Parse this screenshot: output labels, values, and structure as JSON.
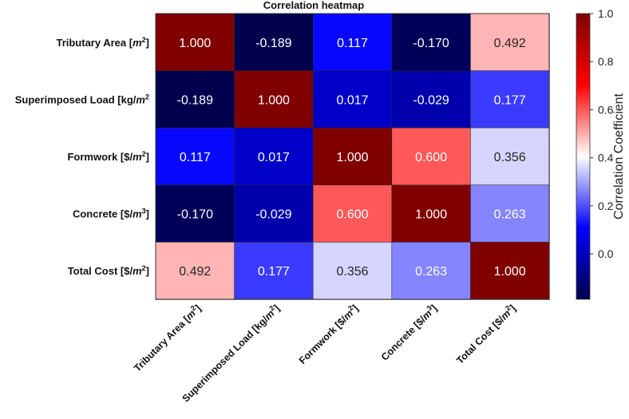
{
  "chart_data": {
    "type": "heatmap",
    "title": "Correlation heatmap",
    "row_labels": [
      {
        "text": "Tributary Area [",
        "math": "m",
        "exp": "2",
        "end": "]"
      },
      {
        "text": "Superimposed Load [kg/",
        "math": "m",
        "exp": "2",
        "end": ""
      },
      {
        "text": "Formwork [$/",
        "math": "m",
        "exp": "2",
        "end": "]"
      },
      {
        "text": "Concrete [$/",
        "math": "m",
        "exp": "3",
        "end": "]"
      },
      {
        "text": "Total Cost [$/",
        "math": "m",
        "exp": "2",
        "end": "]"
      }
    ],
    "col_labels": [
      {
        "text": "Tributary Area [",
        "math": "m",
        "exp": "2",
        "end": "]"
      },
      {
        "text": "Superimposed Load [kg/",
        "math": "m",
        "exp": "2",
        "end": "]"
      },
      {
        "text": "Formwork [$/",
        "math": "m",
        "exp": "2",
        "end": "]"
      },
      {
        "text": "Concrete [$/",
        "math": "m",
        "exp": "3",
        "end": "]"
      },
      {
        "text": "Total Cost [$/",
        "math": "m",
        "exp": "2",
        "end": "]"
      }
    ],
    "values": [
      [
        1.0,
        -0.189,
        0.117,
        -0.17,
        0.492
      ],
      [
        -0.189,
        1.0,
        0.017,
        -0.029,
        0.177
      ],
      [
        0.117,
        0.017,
        1.0,
        0.6,
        0.356
      ],
      [
        -0.17,
        -0.029,
        0.6,
        1.0,
        0.263
      ],
      [
        0.492,
        0.177,
        0.356,
        0.263,
        1.0
      ]
    ],
    "value_labels": [
      [
        "1.000",
        "-0.189",
        "0.117",
        "-0.170",
        "0.492"
      ],
      [
        "-0.189",
        "1.000",
        "0.017",
        "-0.029",
        "0.177"
      ],
      [
        "0.117",
        "0.017",
        "1.000",
        "0.600",
        "0.356"
      ],
      [
        "-0.170",
        "-0.029",
        "0.600",
        "1.000",
        "0.263"
      ],
      [
        "0.492",
        "0.177",
        "0.356",
        "0.263",
        "1.000"
      ]
    ],
    "colormap": "seismic",
    "vmin": -0.189,
    "vmax": 1.0,
    "colorbar": {
      "label": "Correlation Coefficient",
      "ticks": [
        0.0,
        0.2,
        0.4,
        0.6,
        0.8,
        1.0
      ],
      "tick_labels": [
        "0.0",
        "0.2",
        "0.4",
        "0.6",
        "0.8",
        "1.0"
      ]
    }
  }
}
